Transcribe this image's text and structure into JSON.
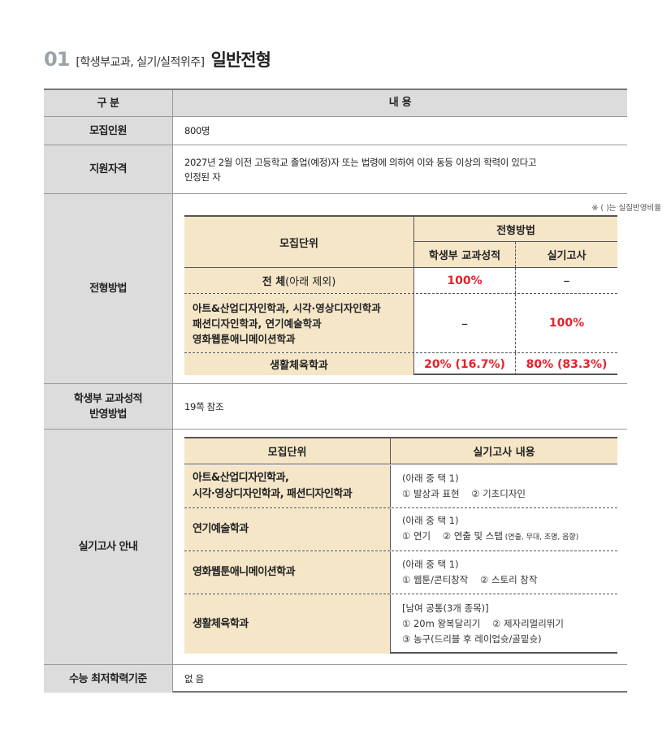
{
  "title": {
    "number": "01",
    "subtitle": "[학생부교과, 실기/실적위주]",
    "main": "일반전형"
  },
  "header": {
    "col1": "구 분",
    "col2": "내 용"
  },
  "rows": {
    "recruit": {
      "label": "모집인원",
      "value": "800명"
    },
    "qual": {
      "label": "지원자격",
      "value_line1": "2027년 2월 이전 고등학교 졸업(예정)자 또는 법령에 의하여 이와 동등 이상의 학력이 있다고",
      "value_line2": "인정된 자"
    },
    "method": {
      "label": "전형방법",
      "note": "※ (   )는 실질반영비율",
      "table": {
        "h_unit": "모집단위",
        "h_method": "전형방법",
        "h_grade": "학생부 교과성적",
        "h_practical": "실기고사",
        "rows": [
          {
            "unit_bold": "전 체",
            "unit_rest": " (아래 제외)",
            "grade": "100%",
            "practical": "–"
          },
          {
            "unit_lines": [
              "아트&산업디자인학과, 시각·영상디자인학과",
              "패션디자인학과, 연기예술학과",
              "영화웹툰애니메이션학과"
            ],
            "grade": "–",
            "practical": "100%"
          },
          {
            "unit": "생활체육학과",
            "grade": "20% (16.7%)",
            "practical": "80% (83.3%)"
          }
        ]
      }
    },
    "grade_method": {
      "label_line1": "학생부 교과성적",
      "label_line2": "반영방법",
      "value": "19쪽 참조"
    },
    "practical": {
      "label": "실기고사 안내",
      "table": {
        "h_unit": "모집단위",
        "h_content": "실기고사 내용",
        "rows": [
          {
            "unit_lines": [
              "아트&산업디자인학과,",
              "시각·영상디자인학과, 패션디자인학과"
            ],
            "content_lines": [
              "(아래 중 택 1)",
              "① 발상과 표현    ② 기초디자인"
            ]
          },
          {
            "unit_lines": [
              "연기예술학과"
            ],
            "content_lines": [
              "(아래 중 택 1)",
              "① 연기    ② 연출 및 스탭"
            ],
            "content_small": " (연출, 무대, 조명, 음향)"
          },
          {
            "unit_lines": [
              "영화웹툰애니메이션학과"
            ],
            "content_lines": [
              "(아래 중 택 1)",
              "① 웹툰/콘티창작    ② 스토리 창작"
            ]
          },
          {
            "unit_lines": [
              "생활체육학과"
            ],
            "content_lines": [
              "[남여 공통(3개 종목)]",
              "① 20m 왕복달리기    ② 제자리멀리뛰기",
              "③ 농구(드리블 후 레이업슛/골밑슛)"
            ]
          }
        ]
      }
    },
    "csat": {
      "label": "수능 최저학력기준",
      "value": "없 음"
    }
  },
  "colors": {
    "header_gray": "#dcdcdc",
    "beige": "#f5e6c8",
    "accent_red": "#e8202a"
  }
}
